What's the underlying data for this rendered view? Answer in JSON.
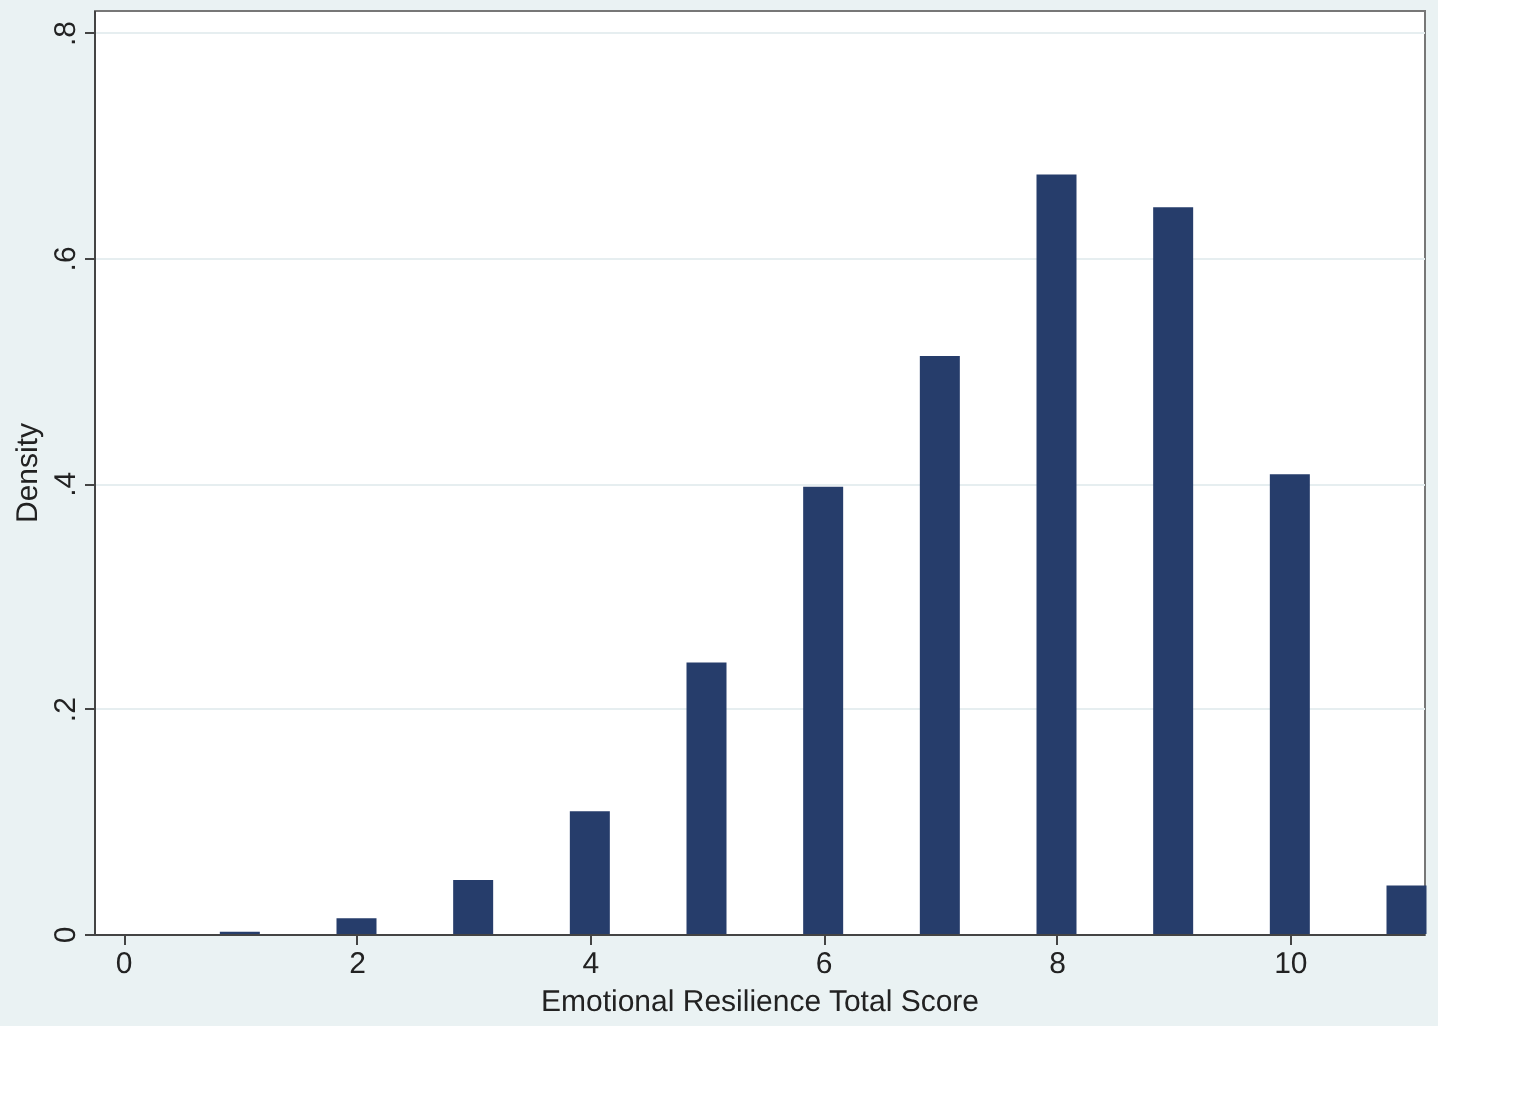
{
  "chart_data": {
    "type": "bar",
    "xlabel": "Emotional Resilience Total Score",
    "ylabel": "Density",
    "x": [
      1,
      2,
      3,
      4,
      5,
      6,
      7,
      8,
      9,
      10,
      11
    ],
    "values": [
      0.002,
      0.014,
      0.048,
      0.109,
      0.241,
      0.397,
      0.513,
      0.674,
      0.645,
      0.408,
      0.043
    ],
    "color": "#263d6b",
    "xlim": [
      -0.25,
      11.15
    ],
    "xticks": [
      0,
      2,
      4,
      6,
      8,
      10
    ],
    "ylim": [
      0,
      0.82
    ],
    "yticks": [
      {
        "value": 0,
        "label": "0"
      },
      {
        "value": 0.2,
        "label": ".2"
      },
      {
        "value": 0.4,
        "label": ".4"
      },
      {
        "value": 0.6,
        "label": ".6"
      },
      {
        "value": 0.8,
        "label": ".8"
      }
    ],
    "grid": "y"
  }
}
